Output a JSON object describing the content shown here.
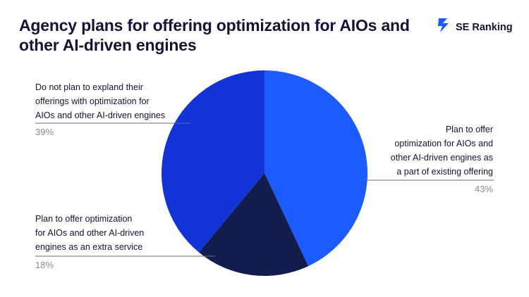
{
  "title": "Agency plans for offering optimization for AIOs and other AI-driven engines",
  "brand": {
    "name": "SE Ranking",
    "logo_icon": "se-ranking-lightning-icon",
    "color": "#1c5bff"
  },
  "chart_data": {
    "type": "pie",
    "title": "Agency plans for offering optimization for AIOs and other AI-driven engines",
    "slices": [
      {
        "label": "Plan to offer optimization for AIOs and other AI-driven engines as a part of existing offering",
        "value": 43,
        "value_label": "43%",
        "color": "#1c5bff"
      },
      {
        "label": "Plan to offer optimization for AIOs and other AI-driven engines as an extra service",
        "value": 18,
        "value_label": "18%",
        "color": "#131d4d"
      },
      {
        "label": "Do not plan to expland their offerings with optimization for AIOs and other AI-driven engines",
        "value": 39,
        "value_label": "39%",
        "color": "#1233d6"
      }
    ],
    "label_lines": {
      "slice_0": [
        "Plan to offer",
        "optimization for AIOs and",
        "other AI-driven engines as",
        "a part of existing offering"
      ],
      "slice_1": [
        "Plan to offer optimization",
        "for AIOs and other AI-driven",
        "engines as an extra service"
      ],
      "slice_2": [
        "Do not plan to expland their",
        "offerings with optimization for",
        "AIOs and other AI-driven engines"
      ]
    }
  }
}
